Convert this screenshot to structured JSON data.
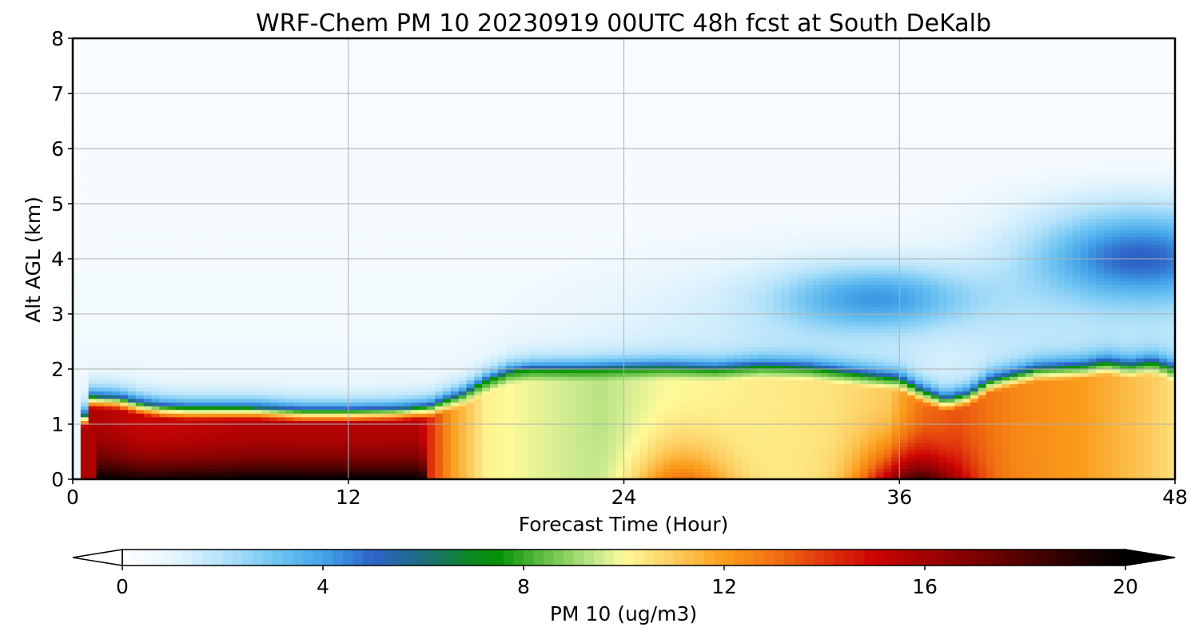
{
  "chart_data": {
    "type": "heatmap",
    "title": "WRF-Chem PM 10  20230919 00UTC 48h fcst at South DeKalb",
    "xlabel": "Forecast Time (Hour)",
    "ylabel": "Alt AGL (km)",
    "xlim": [
      0,
      48
    ],
    "ylim": [
      0,
      8
    ],
    "xticks": [
      0,
      12,
      24,
      36,
      48
    ],
    "yticks": [
      0,
      1,
      2,
      3,
      4,
      5,
      6,
      7,
      8
    ],
    "grid": true,
    "colorbar": {
      "label": "PM 10  (ug/m3)",
      "range": [
        0,
        20
      ],
      "ticks": [
        0,
        4,
        8,
        12,
        16,
        20
      ],
      "extend": "both",
      "orientation": "horizontal",
      "colors": [
        {
          "v": 0,
          "c": "#ffffff"
        },
        {
          "v": 1,
          "c": "#e6f5fd"
        },
        {
          "v": 2,
          "c": "#b6e3fa"
        },
        {
          "v": 3,
          "c": "#73c6f3"
        },
        {
          "v": 4,
          "c": "#42a4e8"
        },
        {
          "v": 5,
          "c": "#2e63c9"
        },
        {
          "v": 6,
          "c": "#1d6d7e"
        },
        {
          "v": 7,
          "c": "#0b8a1d"
        },
        {
          "v": 7.5,
          "c": "#069206"
        },
        {
          "v": 8.5,
          "c": "#6cc34b"
        },
        {
          "v": 9.5,
          "c": "#cbeb8f"
        },
        {
          "v": 10,
          "c": "#fefa9a"
        },
        {
          "v": 11,
          "c": "#fdcc5f"
        },
        {
          "v": 12,
          "c": "#fb9d1b"
        },
        {
          "v": 13,
          "c": "#f27112"
        },
        {
          "v": 14,
          "c": "#e0350c"
        },
        {
          "v": 15,
          "c": "#cc0404"
        },
        {
          "v": 16,
          "c": "#a40303"
        },
        {
          "v": 17,
          "c": "#7c0202"
        },
        {
          "v": 18,
          "c": "#4f0202"
        },
        {
          "v": 19,
          "c": "#240101"
        },
        {
          "v": 20,
          "c": "#000000"
        }
      ]
    },
    "layers": {
      "pbl_height_km": [
        [
          0,
          0.05
        ],
        [
          0.3,
          0.5
        ],
        [
          0.5,
          1.15
        ],
        [
          0.8,
          1.5
        ],
        [
          1,
          1.5
        ],
        [
          2,
          1.48
        ],
        [
          3,
          1.38
        ],
        [
          4,
          1.32
        ],
        [
          5,
          1.3
        ],
        [
          6,
          1.3
        ],
        [
          8,
          1.3
        ],
        [
          10,
          1.25
        ],
        [
          12,
          1.25
        ],
        [
          14,
          1.27
        ],
        [
          15.5,
          1.32
        ],
        [
          17,
          1.55
        ],
        [
          18,
          1.78
        ],
        [
          19,
          1.95
        ],
        [
          20,
          2.0
        ],
        [
          22,
          2.0
        ],
        [
          24,
          2.02
        ],
        [
          26,
          2.03
        ],
        [
          28,
          2.0
        ],
        [
          30,
          2.05
        ],
        [
          32,
          2.02
        ],
        [
          34,
          1.92
        ],
        [
          36,
          1.82
        ],
        [
          37,
          1.6
        ],
        [
          38,
          1.45
        ],
        [
          39,
          1.55
        ],
        [
          40,
          1.8
        ],
        [
          42,
          2.0
        ],
        [
          44,
          2.05
        ],
        [
          45,
          2.12
        ],
        [
          46,
          2.06
        ],
        [
          47,
          2.12
        ],
        [
          48,
          2.0
        ]
      ],
      "surface_max_hours": [
        [
          1,
          15
        ],
        [
          35,
          38
        ]
      ],
      "secondary_plume_4km_hours": [
        40,
        48
      ],
      "secondary_plume_3km_hours": [
        33,
        39
      ]
    }
  }
}
